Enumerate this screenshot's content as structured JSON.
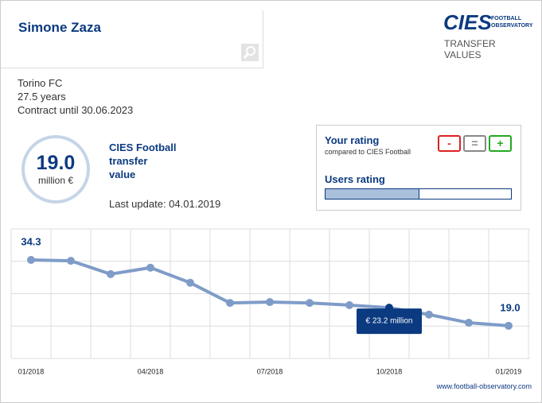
{
  "header": {
    "player": "Simone Zaza",
    "logo": "CIES",
    "logo_sub": [
      "FOOTBALL",
      "OBSERVATORY"
    ],
    "section": [
      "TRANSFER",
      "VALUES"
    ]
  },
  "info": {
    "club": "Torino FC",
    "age": "27.5 years",
    "contract": "Contract until 30.06.2023"
  },
  "value_box": {
    "value": "19.0",
    "unit": "million €",
    "caption": [
      "CIES Football",
      "transfer",
      "value"
    ],
    "update": "Last update: 04.01.2019"
  },
  "rating": {
    "title": "Your rating",
    "subtitle": "compared to CIES Football",
    "buttons": [
      "-",
      "=",
      "+"
    ],
    "users_title": "Users rating",
    "users_share": 0.5
  },
  "footer": "www.football-observatory.com",
  "chart_data": {
    "type": "line",
    "categories": [
      "01/2018",
      null,
      null,
      "04/2018",
      null,
      null,
      "07/2018",
      null,
      null,
      "10/2018",
      null,
      null,
      "01/2019"
    ],
    "series": [
      {
        "color": "#7f9cc8",
        "values": [
          34.3,
          34.1,
          31.0,
          32.5,
          29.0,
          24.3,
          24.5,
          24.3,
          23.8,
          23.2,
          21.6,
          19.7,
          19.0
        ],
        "value_labels": [
          "34.3",
          null,
          null,
          null,
          null,
          null,
          null,
          null,
          null,
          "€ 23.2 million",
          null,
          null,
          "19.0"
        ]
      }
    ],
    "ylim": [
      11.4,
      41.5
    ],
    "grid": true
  }
}
